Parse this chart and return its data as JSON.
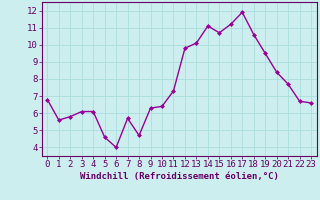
{
  "x": [
    0,
    1,
    2,
    3,
    4,
    5,
    6,
    7,
    8,
    9,
    10,
    11,
    12,
    13,
    14,
    15,
    16,
    17,
    18,
    19,
    20,
    21,
    22,
    23
  ],
  "y": [
    6.8,
    5.6,
    5.8,
    6.1,
    6.1,
    4.6,
    4.0,
    5.7,
    4.7,
    6.3,
    6.4,
    7.3,
    9.8,
    10.1,
    11.1,
    10.7,
    11.2,
    11.9,
    10.6,
    9.5,
    8.4,
    7.7,
    6.7,
    6.6
  ],
  "line_color": "#990099",
  "marker": "D",
  "marker_size": 2.0,
  "linewidth": 1.0,
  "xlabel": "Windchill (Refroidissement éolien,°C)",
  "xlabel_fontsize": 6.5,
  "ylim": [
    3.5,
    12.5
  ],
  "xlim": [
    -0.5,
    23.5
  ],
  "yticks": [
    4,
    5,
    6,
    7,
    8,
    9,
    10,
    11,
    12
  ],
  "xticks": [
    0,
    1,
    2,
    3,
    4,
    5,
    6,
    7,
    8,
    9,
    10,
    11,
    12,
    13,
    14,
    15,
    16,
    17,
    18,
    19,
    20,
    21,
    22,
    23
  ],
  "grid_color": "#aadddd",
  "bg_color": "#cceeee",
  "tick_fontsize": 6.5,
  "text_color": "#660066",
  "axis_color": "#660066",
  "spine_color": "#660066"
}
